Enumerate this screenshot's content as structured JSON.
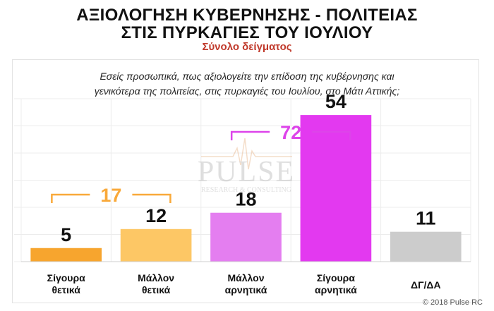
{
  "title_line1": "ΑΞΙΟΛΟΓΗΣΗ ΚΥΒΕΡΝΗΣΗΣ - ΠΟΛΙΤΕΙΑΣ",
  "title_line2": "ΣΤΙΣ ΠΥΡΚΑΓΙΕΣ ΤΟΥ ΙΟΥΛΙΟΥ",
  "subtitle": "Σύνολο δείγματος",
  "question_line1": "Εσείς προσωπικά, πως αξιολογείτε την επίδοση της κυβέρνησης και",
  "question_line2": "γενικότερα της πολιτείας, στις πυρκαγιές του Ιουλίου, στο Μάτι Αττικής;",
  "watermark": {
    "name": "PULSE",
    "tagline": "RESEARCH & CONSULTING"
  },
  "footer": "© 2018 Pulse RC",
  "chart_data": {
    "type": "bar",
    "categories": [
      [
        "Σίγουρα",
        "θετικά"
      ],
      [
        "Μάλλον",
        "θετικά"
      ],
      [
        "Μάλλον",
        "αρνητικά"
      ],
      [
        "Σίγουρα",
        "αρνητικά"
      ],
      [
        "ΔΓ/ΔΑ"
      ]
    ],
    "values": [
      5,
      12,
      18,
      54,
      11
    ],
    "colors": [
      "#f7a52e",
      "#fdc765",
      "#e47ef0",
      "#e339f0",
      "#cccccc"
    ],
    "ylim": [
      0,
      60
    ],
    "grid": true,
    "groups": [
      {
        "label": "17",
        "from": 0,
        "to": 1,
        "color": "#f9a93a"
      },
      {
        "label": "72",
        "from": 2,
        "to": 3,
        "color": "#dd44ea"
      }
    ]
  }
}
